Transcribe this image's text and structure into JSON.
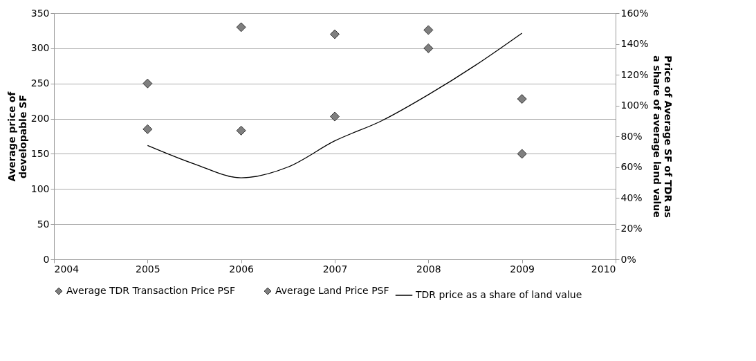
{
  "chart_data": {
    "type": "scatter",
    "xlabel": null,
    "ylabel": "Average price of developable SF",
    "y2label": "Price of Average SF of TDR as a share of average land value",
    "x": [
      2005,
      2006,
      2007,
      2008,
      2009
    ],
    "series": [
      {
        "name": "Average TDR Transaction Price PSF",
        "color": "#7f7f7f",
        "values": [
          185,
          183,
          203,
          300,
          150
        ]
      },
      {
        "name": "Average Land Price PSF",
        "color": "#7f7f7f",
        "values": [
          250,
          330,
          320,
          326,
          228
        ]
      },
      {
        "name": "TDR price as a share of land value",
        "type": "line",
        "axis": "y2",
        "color": "#000000",
        "marker": "none",
        "x": [
          2005,
          2005.5,
          2006,
          2006.5,
          2007,
          2007.5,
          2008,
          2008.5,
          2009
        ],
        "values": [
          74,
          62,
          53,
          60,
          77,
          90,
          107,
          126,
          147
        ]
      }
    ],
    "xlim": [
      2004,
      2010
    ],
    "xticks": [
      2004,
      2005,
      2006,
      2007,
      2008,
      2009,
      2010
    ],
    "ylim": [
      0,
      350
    ],
    "yticks": [
      0,
      50,
      100,
      150,
      200,
      250,
      300,
      350
    ],
    "y2lim": [
      0,
      160
    ],
    "y2ticks": [
      {
        "value": 0,
        "label": "0%"
      },
      {
        "value": 20,
        "label": "20%"
      },
      {
        "value": 40,
        "label": "40%"
      },
      {
        "value": 60,
        "label": "60%"
      },
      {
        "value": 80,
        "label": "80%"
      },
      {
        "value": 100,
        "label": "100%"
      },
      {
        "value": 120,
        "label": "120%"
      },
      {
        "value": 140,
        "label": "140%"
      },
      {
        "value": 160,
        "label": "160%"
      }
    ],
    "grid": "y",
    "legend": "bottom",
    "marker": "diamond"
  }
}
